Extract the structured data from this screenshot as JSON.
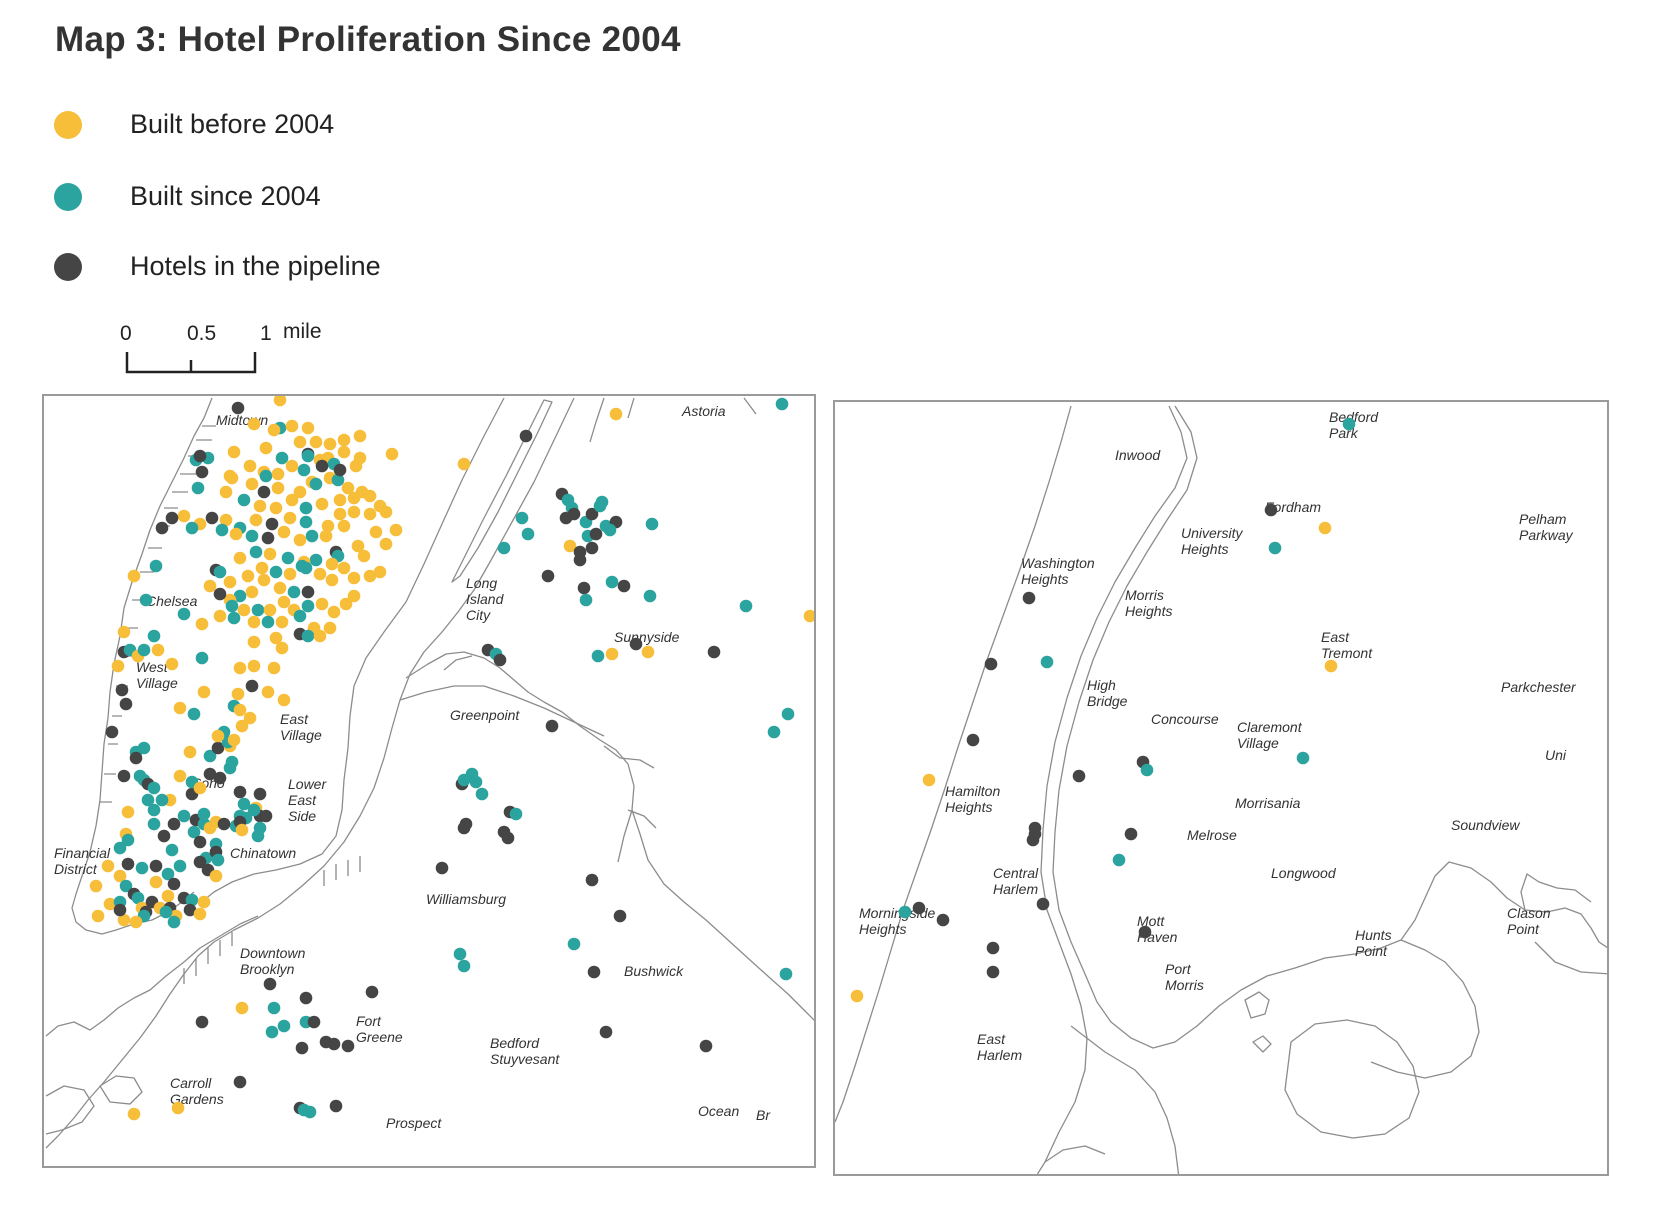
{
  "title": "Map 3: Hotel Proliferation Since 2004",
  "colors": {
    "before": "#F7BE3A",
    "since": "#2BA39E",
    "pipeline": "#454545",
    "land": "#8c8c8c",
    "frame": "#9a9a9a"
  },
  "legend": [
    {
      "key": "before",
      "label": "Built before 2004"
    },
    {
      "key": "since",
      "label": "Built since 2004"
    },
    {
      "key": "pipeline",
      "label": "Hotels in the pipeline"
    }
  ],
  "scale": {
    "ticks": [
      "0",
      "0.5",
      "1"
    ],
    "unit": "mile"
  },
  "maps": [
    {
      "id": "brooklyn-manhattan-queens",
      "labels": [
        [
          "Midtown"
        ],
        [
          "Chelsea"
        ],
        [
          "West",
          "Village"
        ],
        [
          "East",
          "Village"
        ],
        [
          "Soho"
        ],
        [
          "Lower",
          "East",
          "Side"
        ],
        [
          "Chinatown"
        ],
        [
          "Financial",
          "District"
        ],
        [
          "Downtown",
          "Brooklyn"
        ],
        [
          "Carroll",
          "Gardens"
        ],
        [
          "Fort",
          "Greene"
        ],
        [
          "Bedford",
          "Stuyvesant"
        ],
        [
          "Williamsburg"
        ],
        [
          "Greenpoint"
        ],
        [
          "Long",
          "Island",
          "City"
        ],
        [
          "Sunnyside"
        ],
        [
          "Astoria"
        ],
        [
          "Bushwick"
        ],
        [
          "Ocean"
        ],
        [
          "Prospect"
        ],
        [
          "Br"
        ]
      ]
    },
    {
      "id": "upper-manhattan-bronx",
      "labels": [
        [
          "Bedford",
          "Park"
        ],
        [
          "Inwood"
        ],
        [
          "Fordham"
        ],
        [
          "University",
          "Heights"
        ],
        [
          "Pelham",
          "Parkway"
        ],
        [
          "Washington",
          "Heights"
        ],
        [
          "Morris",
          "Heights"
        ],
        [
          "East",
          "Tremont"
        ],
        [
          "High",
          "Bridge"
        ],
        [
          "Concourse"
        ],
        [
          "Claremont",
          "Village"
        ],
        [
          "Parkchester"
        ],
        [
          "Uni"
        ],
        [
          "Hamilton",
          "Heights"
        ],
        [
          "Morrisania"
        ],
        [
          "Soundview"
        ],
        [
          "Melrose"
        ],
        [
          "Longwood"
        ],
        [
          "Central",
          "Harlem"
        ],
        [
          "Morningside",
          "Heights"
        ],
        [
          "Mott",
          "Haven"
        ],
        [
          "Hunts",
          "Point"
        ],
        [
          "Clason",
          "Point"
        ],
        [
          "Port",
          "Morris"
        ],
        [
          "East",
          "Harlem"
        ]
      ]
    }
  ]
}
